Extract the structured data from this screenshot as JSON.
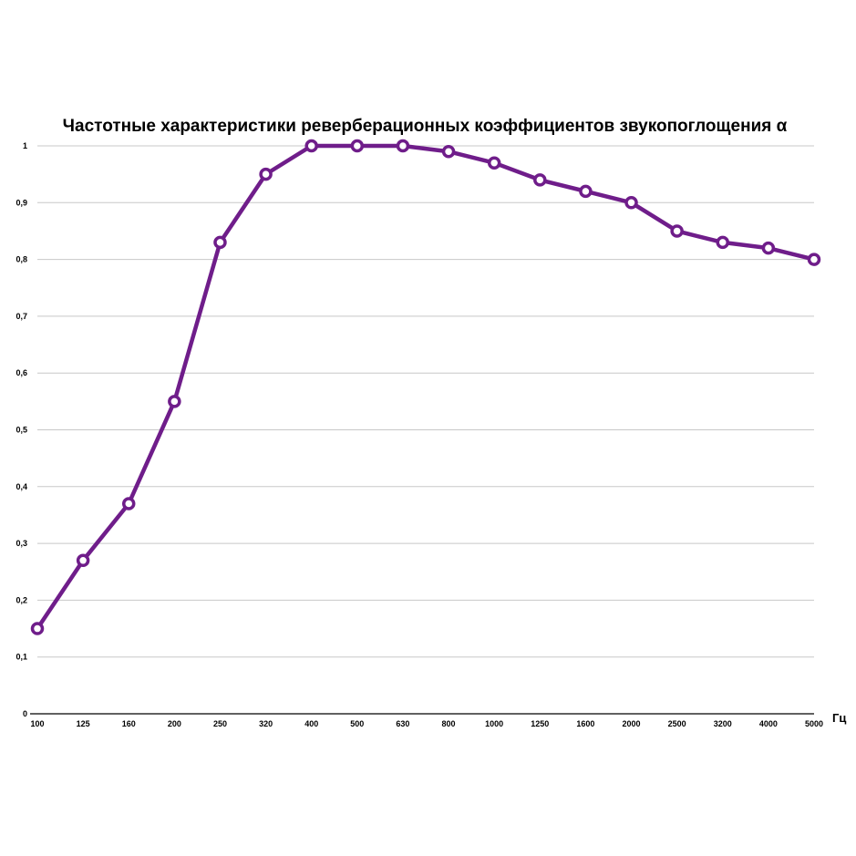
{
  "chart_data": {
    "type": "line",
    "title": "Частотные характеристики реверберационных коэффициентов звукопоглощения α",
    "xlabel": "Гц",
    "ylabel": "",
    "categories": [
      "100",
      "125",
      "160",
      "200",
      "250",
      "320",
      "400",
      "500",
      "630",
      "800",
      "1000",
      "1250",
      "1600",
      "2000",
      "2500",
      "3200",
      "4000",
      "5000"
    ],
    "series": [
      {
        "values": [
          0.15,
          0.27,
          0.37,
          0.55,
          0.83,
          0.95,
          1.0,
          1.0,
          1.0,
          0.99,
          0.97,
          0.94,
          0.92,
          0.9,
          0.85,
          0.83,
          0.82,
          0.8
        ]
      }
    ],
    "ylim": [
      0,
      1
    ],
    "yticks": [
      "0",
      "0,1",
      "0,2",
      "0,3",
      "0,4",
      "0,5",
      "0,6",
      "0,7",
      "0,8",
      "0,9",
      "1"
    ],
    "grid": true,
    "legend": "none",
    "colors": {
      "series": "#6f1d8a",
      "grid": "#c8c8c8"
    }
  }
}
